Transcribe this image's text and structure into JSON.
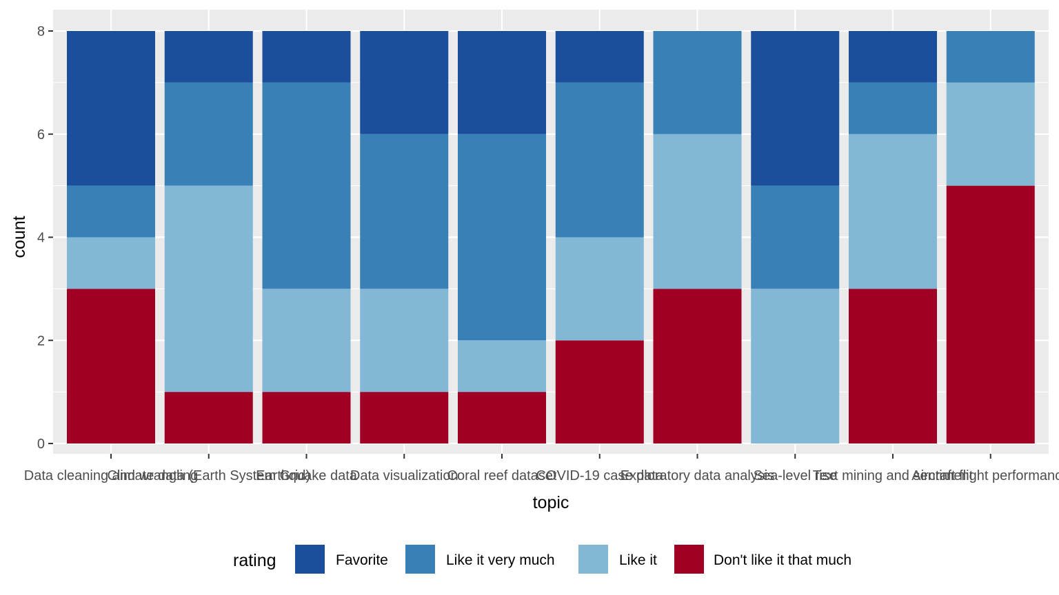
{
  "chart_data": {
    "type": "bar",
    "stacked": true,
    "xlabel": "topic",
    "ylabel": "count",
    "ylim": [
      0,
      8
    ],
    "yticks": [
      0,
      2,
      4,
      6,
      8
    ],
    "grid": true,
    "legend_position": "bottom",
    "legend_title": "rating",
    "categories": [
      "Data cleaning and wrangling",
      "Climate data (Earth System Grid)",
      "Earthquake data",
      "Data visualization",
      "Coral reef dataset",
      "COVID-19 case data",
      "Exploratory data analysis",
      "Sea-level rise",
      "Text mining and sentiment",
      "Aircraft flight performance"
    ],
    "series": [
      {
        "name": "Favorite",
        "color": "#1b4f9c",
        "values": [
          3,
          1,
          1,
          2,
          2,
          1,
          0,
          3,
          1,
          0
        ]
      },
      {
        "name": "Like it very much",
        "color": "#3880b6",
        "values": [
          1,
          2,
          4,
          3,
          4,
          3,
          2,
          2,
          1,
          1
        ]
      },
      {
        "name": "Like it",
        "color": "#82b7d6",
        "values": [
          1,
          4,
          2,
          2,
          1,
          2,
          3,
          3,
          3,
          2
        ]
      },
      {
        "name": "Don't like it that much",
        "color": "#a00023",
        "values": [
          3,
          1,
          1,
          1,
          1,
          2,
          3,
          0,
          3,
          5
        ]
      }
    ]
  }
}
